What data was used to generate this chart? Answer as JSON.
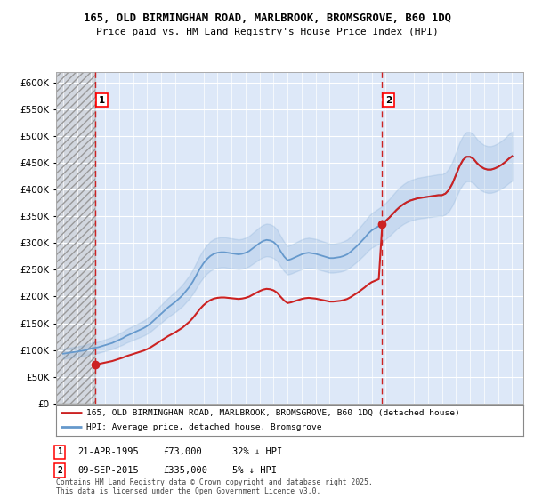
{
  "title": "165, OLD BIRMINGHAM ROAD, MARLBROOK, BROMSGROVE, B60 1DQ",
  "subtitle": "Price paid vs. HM Land Registry's House Price Index (HPI)",
  "ylim": [
    0,
    620000
  ],
  "yticks": [
    0,
    50000,
    100000,
    150000,
    200000,
    250000,
    300000,
    350000,
    400000,
    450000,
    500000,
    550000,
    600000
  ],
  "plot_bg_color": "#dde8f8",
  "legend_label_red": "165, OLD BIRMINGHAM ROAD, MARLBROOK, BROMSGROVE, B60 1DQ (detached house)",
  "legend_label_blue": "HPI: Average price, detached house, Bromsgrove",
  "footnote": "Contains HM Land Registry data © Crown copyright and database right 2025.\nThis data is licensed under the Open Government Licence v3.0.",
  "sale1_date": "21-APR-1995",
  "sale1_price": "£73,000",
  "sale1_hpi": "32% ↓ HPI",
  "sale1_year": 1995.3,
  "sale1_value": 73000,
  "sale2_date": "09-SEP-2015",
  "sale2_price": "£335,000",
  "sale2_hpi": "5% ↓ HPI",
  "sale2_year": 2015.7,
  "sale2_value": 335000,
  "hpi_color": "#6699cc",
  "price_color": "#cc2222",
  "vline_color": "#cc2222",
  "hatch_color": "#bbbbbb"
}
